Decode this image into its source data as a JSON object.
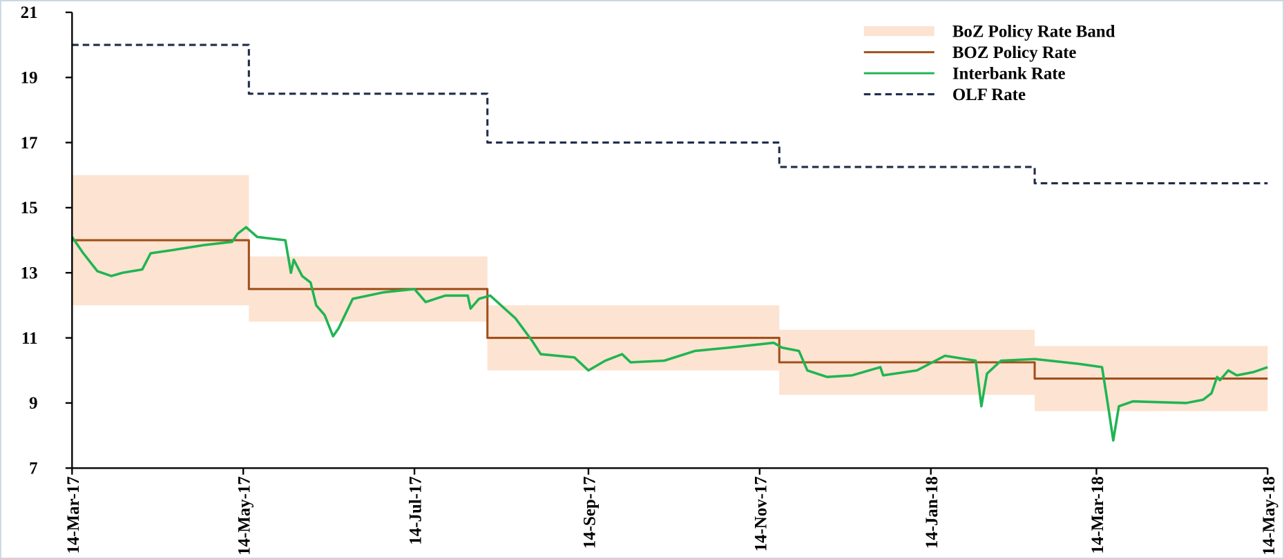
{
  "chart_data": {
    "type": "line",
    "xlim": [
      "2017-03-14",
      "2018-05-14"
    ],
    "xticks": [
      {
        "value": "2017-03-14",
        "label": "14-Mar-17"
      },
      {
        "value": "2017-05-14",
        "label": "14-May-17"
      },
      {
        "value": "2017-07-14",
        "label": "14-Jul-17"
      },
      {
        "value": "2017-09-14",
        "label": "14-Sep-17"
      },
      {
        "value": "2017-11-14",
        "label": "14-Nov-17"
      },
      {
        "value": "2018-01-14",
        "label": "14-Jan-18"
      },
      {
        "value": "2018-03-14",
        "label": "14-Mar-18"
      },
      {
        "value": "2018-05-14",
        "label": "14-May-18"
      }
    ],
    "ylim": [
      7,
      21
    ],
    "yticks": [
      7,
      9,
      11,
      13,
      15,
      17,
      19,
      21
    ],
    "legend": "upper right",
    "series": [
      {
        "name": "BoZ Policy Rate Band",
        "color": "#fde3d2",
        "style": "band",
        "x": [
          "2017-03-14",
          "2017-05-16",
          "2017-08-09",
          "2017-11-21",
          "2018-02-20",
          "2018-05-14"
        ],
        "lower": [
          12,
          11.5,
          10,
          9.25,
          8.75,
          8.75
        ],
        "upper": [
          16,
          13.5,
          12,
          11.25,
          10.75,
          10.75
        ]
      },
      {
        "name": "BOZ Policy Rate",
        "color": "#a0501a",
        "style": "step",
        "x": [
          "2017-03-14",
          "2017-05-16",
          "2017-08-09",
          "2017-11-21",
          "2018-02-20",
          "2018-05-14"
        ],
        "values": [
          14,
          12.5,
          11,
          10.25,
          9.75,
          9.75
        ]
      },
      {
        "name": "Interbank Rate",
        "color": "#1fb552",
        "style": "solid",
        "x": [
          "2017-03-14",
          "2017-03-18",
          "2017-03-23",
          "2017-03-28",
          "2017-04-01",
          "2017-04-08",
          "2017-04-11",
          "2017-04-19",
          "2017-04-30",
          "2017-05-10",
          "2017-05-12",
          "2017-05-15",
          "2017-05-19",
          "2017-05-29",
          "2017-05-31",
          "2017-06-01",
          "2017-06-04",
          "2017-06-07",
          "2017-06-09",
          "2017-06-12",
          "2017-06-15",
          "2017-06-17",
          "2017-06-22",
          "2017-07-03",
          "2017-07-14",
          "2017-07-18",
          "2017-07-25",
          "2017-08-02",
          "2017-08-03",
          "2017-08-06",
          "2017-08-10",
          "2017-08-19",
          "2017-08-25",
          "2017-08-28",
          "2017-09-09",
          "2017-09-14",
          "2017-09-20",
          "2017-09-26",
          "2017-09-29",
          "2017-10-11",
          "2017-10-22",
          "2017-11-03",
          "2017-11-19",
          "2017-11-22",
          "2017-11-28",
          "2017-12-01",
          "2017-12-08",
          "2017-12-17",
          "2017-12-27",
          "2017-12-28",
          "2018-01-09",
          "2018-01-19",
          "2018-01-30",
          "2018-02-01",
          "2018-02-03",
          "2018-02-08",
          "2018-02-20",
          "2018-03-08",
          "2018-03-16",
          "2018-03-18",
          "2018-03-20",
          "2018-03-22",
          "2018-03-27",
          "2018-04-15",
          "2018-04-21",
          "2018-04-24",
          "2018-04-26",
          "2018-04-27",
          "2018-04-30",
          "2018-05-03",
          "2018-05-09",
          "2018-05-14"
        ],
        "values": [
          14.1,
          13.6,
          13.05,
          12.9,
          13.0,
          13.1,
          13.6,
          13.7,
          13.85,
          13.95,
          14.2,
          14.4,
          14.1,
          14.0,
          13.0,
          13.4,
          12.9,
          12.7,
          12.0,
          11.7,
          11.05,
          11.3,
          12.2,
          12.4,
          12.5,
          12.1,
          12.3,
          12.3,
          11.9,
          12.2,
          12.3,
          11.6,
          10.9,
          10.5,
          10.4,
          10.0,
          10.3,
          10.5,
          10.25,
          10.3,
          10.6,
          10.7,
          10.85,
          10.7,
          10.6,
          10.0,
          9.8,
          9.85,
          10.1,
          9.85,
          10.0,
          10.45,
          10.3,
          8.9,
          9.9,
          10.3,
          10.35,
          10.2,
          10.1,
          9.0,
          7.85,
          8.9,
          9.05,
          9.0,
          9.1,
          9.3,
          9.8,
          9.7,
          10.0,
          9.85,
          9.95,
          10.1
        ]
      },
      {
        "name": "OLF Rate",
        "color": "#1f2d4a",
        "style": "dashed-step",
        "x": [
          "2017-03-14",
          "2017-05-16",
          "2017-08-09",
          "2017-11-21",
          "2018-02-20",
          "2018-05-14"
        ],
        "values": [
          20,
          18.5,
          17,
          16.25,
          15.75,
          15.75
        ]
      }
    ]
  }
}
